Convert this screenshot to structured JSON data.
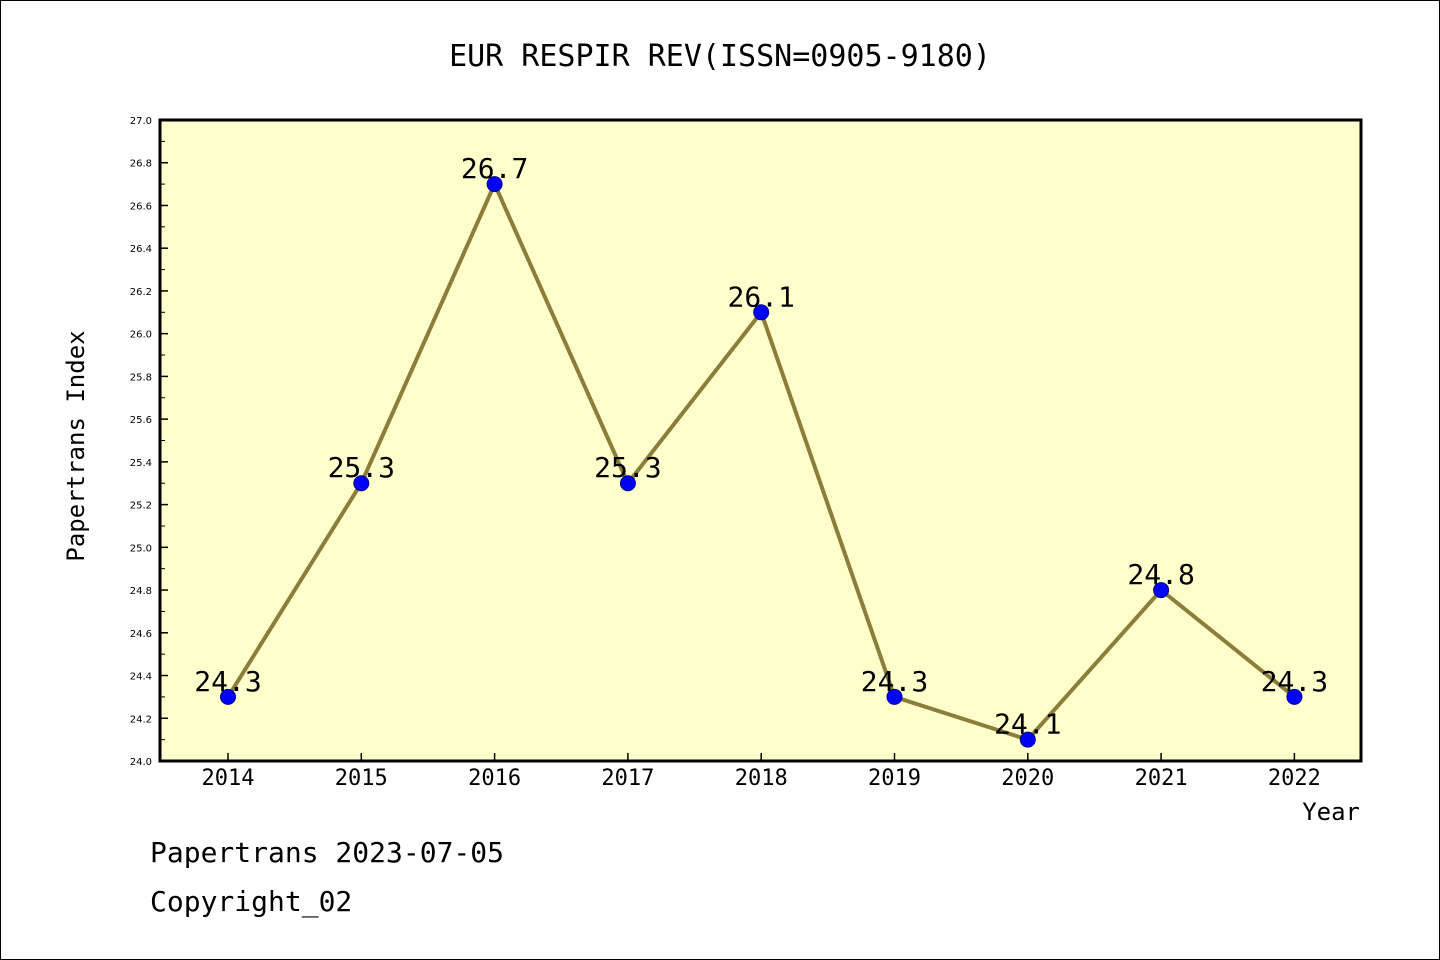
{
  "chart_data": {
    "type": "line",
    "title": "EUR RESPIR REV(ISSN=0905-9180)",
    "xlabel": "Year",
    "ylabel": "Papertrans Index",
    "categories": [
      "2014",
      "2015",
      "2016",
      "2017",
      "2018",
      "2019",
      "2020",
      "2021",
      "2022"
    ],
    "series": [
      {
        "values": [
          24.3,
          25.3,
          26.7,
          25.3,
          26.1,
          24.3,
          24.1,
          24.8,
          24.3
        ],
        "data_labels": [
          "24.3",
          "25.3",
          "26.7",
          "25.3",
          "26.1",
          "24.3",
          "24.1",
          "24.8",
          "24.3"
        ]
      }
    ],
    "ylim": [
      24.0,
      27.0
    ],
    "yticks": [
      "24.0",
      "24.2",
      "24.4",
      "24.6",
      "24.8",
      "25.0",
      "25.2",
      "25.4",
      "25.6",
      "25.8",
      "26.0",
      "26.2",
      "26.4",
      "26.6",
      "26.8",
      "27.0"
    ],
    "grid": false,
    "legend": "none",
    "colors": {
      "plot_background": "#ffffcc",
      "line": "#8b7d3a",
      "marker": "#0000ff",
      "axis": "#000000"
    }
  },
  "footer": {
    "date_text": "Papertrans 2023-07-05",
    "copyright_text": "Copyright_02"
  }
}
